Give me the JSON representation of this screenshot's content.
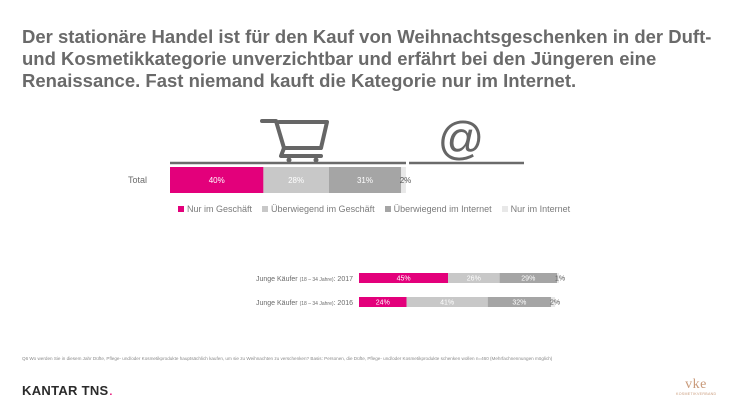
{
  "headline": "Der stationäre Handel ist für den Kauf von Weihnachtsgeschenken in der Duft- und Kosmetikkategorie unverzichtbar und erfährt bei den Jüngeren eine Renaissance. Fast niemand kauft die Kategorie nur im Internet.",
  "icons": {
    "store": "shopping-cart-icon",
    "online": "at-sign-icon"
  },
  "colors": {
    "nur_im_geschaeft": "#e3007b",
    "ueberwiegend_im_geschaeft": "#c8c8c8",
    "ueberwiegend_im_internet": "#a5a5a5",
    "nur_im_internet": "#e8e8e8",
    "icon": "#666666"
  },
  "legend": [
    "Nur im Geschäft",
    "Überwiegend im Geschäft",
    "Überwiegend im Internet",
    "Nur im Internet"
  ],
  "chart_data": [
    {
      "type": "bar",
      "orientation": "horizontal",
      "stacked": true,
      "categories": [
        "Total"
      ],
      "series": [
        {
          "name": "Nur im Geschäft",
          "values": [
            40
          ]
        },
        {
          "name": "Überwiegend im Geschäft",
          "values": [
            28
          ]
        },
        {
          "name": "Überwiegend im Internet",
          "values": [
            31
          ]
        },
        {
          "name": "Nur im Internet",
          "values": [
            2
          ]
        }
      ],
      "value_labels": [
        [
          "40%",
          "28%",
          "31%",
          "2%"
        ]
      ],
      "xlim": [
        0,
        100
      ],
      "legend_position": "bottom"
    },
    {
      "type": "bar",
      "orientation": "horizontal",
      "stacked": true,
      "categories": [
        {
          "label": "Junge Käufer",
          "note": "(18 – 34 Jahre)",
          "year": ": 2017"
        },
        {
          "label": "Junge Käufer",
          "note": "(18 – 34 Jahre)",
          "year": ": 2016"
        }
      ],
      "series": [
        {
          "name": "Nur im Geschäft",
          "values": [
            45,
            24
          ]
        },
        {
          "name": "Überwiegend im Geschäft",
          "values": [
            26,
            41
          ]
        },
        {
          "name": "Überwiegend im Internet",
          "values": [
            29,
            32
          ]
        },
        {
          "name": "Nur im Internet",
          "values": [
            1,
            2
          ]
        }
      ],
      "value_labels": [
        [
          "45%",
          "26%",
          "29%",
          "1%"
        ],
        [
          "24%",
          "41%",
          "32%",
          "2%"
        ]
      ],
      "xlim": [
        0,
        100
      ]
    }
  ],
  "footnote": "Q6 Wo werden Sie in diesem Jahr Düfte, Pflege- und/oder Kosmetikprodukte hauptsächlich kaufen, um sie zu Weihnachten zu verschenken? Basis: Personen, die Düfte, Pflege- und/oder Kosmetikprodukte schenken wollen n=460 (Mehrfachnennungen möglich)",
  "brand": {
    "name": "KANTAR TNS",
    "mark": "."
  },
  "partner_logo": {
    "word": "vke",
    "sub": "KOSMETIKVERBAND"
  }
}
